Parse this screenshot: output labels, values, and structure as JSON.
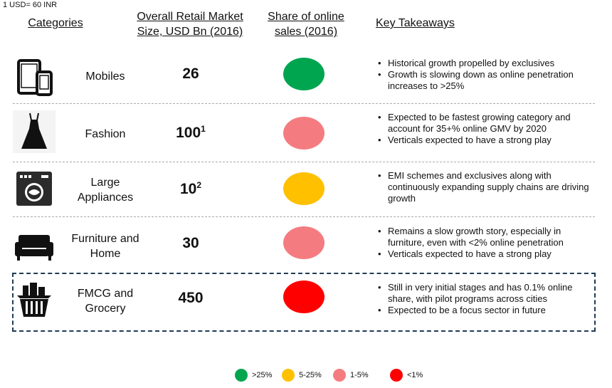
{
  "note": "1 USD= 60 INR",
  "headers": {
    "categories": "Categories",
    "market_size": "Overall Retail Market Size, USD Bn (2016)",
    "online_share": "Share of online sales (2016)",
    "takeaways": "Key Takeaways"
  },
  "rows": [
    {
      "name": "Mobiles",
      "icon": "mobile-tablet-icon",
      "value": "26",
      "footnote": "",
      "share_color": "#00a550",
      "takeaways": [
        "Historical growth propelled by exclusives",
        "Growth is slowing down as online penetration increases to >25%"
      ]
    },
    {
      "name": "Fashion",
      "icon": "dress-icon",
      "value": "100",
      "footnote": "1",
      "share_color": "#f47c80",
      "takeaways": [
        "Expected to be fastest growing category and account for 35+% online GMV by 2020",
        "Verticals expected to have a strong play"
      ]
    },
    {
      "name": "Large Appliances",
      "icon": "washing-machine-icon",
      "value": "10",
      "footnote": "2",
      "share_color": "#ffc000",
      "takeaways": [
        "EMI schemes and exclusives along with continuously expanding supply chains are driving growth"
      ]
    },
    {
      "name": "Furniture and Home",
      "icon": "sofa-icon",
      "value": "30",
      "footnote": "",
      "share_color": "#f47c80",
      "takeaways": [
        "Remains a slow growth story, especially in furniture, even with <2% online penetration",
        "Verticals expected to have a strong play"
      ]
    },
    {
      "name": "FMCG and Grocery",
      "icon": "grocery-basket-icon",
      "value": "450",
      "footnote": "",
      "share_color": "#ff0000",
      "takeaways": [
        "Still in very initial stages and has 0.1% online share, with pilot programs across cities",
        "Expected to be a focus sector in future"
      ]
    }
  ],
  "legend": [
    {
      "label": ">25%",
      "color": "#00a550"
    },
    {
      "label": "5-25%",
      "color": "#ffc000"
    },
    {
      "label": "1-5%",
      "color": "#f47c80"
    },
    {
      "label": "<1%",
      "color": "#ff0000"
    }
  ]
}
